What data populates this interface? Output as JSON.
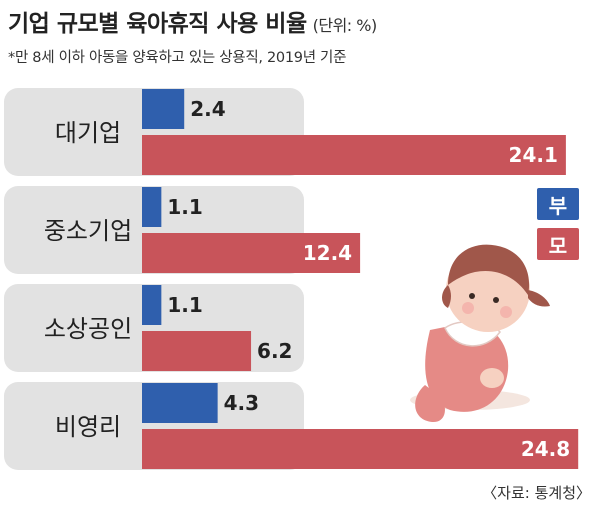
{
  "title": "기업 규모별 육아휴직 사용 비율",
  "unit": "(단위: %)",
  "subtitle": "*만 8세 이하 아동을 양육하고 있는 상용직, 2019년 기준",
  "source": "〈자료: 통계청〉",
  "legend": [
    {
      "label": "부",
      "color": "#2f5fad"
    },
    {
      "label": "모",
      "color": "#c8545a"
    }
  ],
  "chart_data": {
    "type": "bar",
    "orientation": "horizontal",
    "categories": [
      "대기업",
      "중소기업",
      "소상공인",
      "비영리"
    ],
    "series": [
      {
        "name": "부",
        "color": "#2f5fad",
        "values": [
          2.4,
          1.1,
          1.1,
          4.3
        ]
      },
      {
        "name": "모",
        "color": "#c8545a",
        "values": [
          24.1,
          12.4,
          6.2,
          24.8
        ]
      }
    ],
    "xlim": [
      0,
      25.3
    ]
  }
}
